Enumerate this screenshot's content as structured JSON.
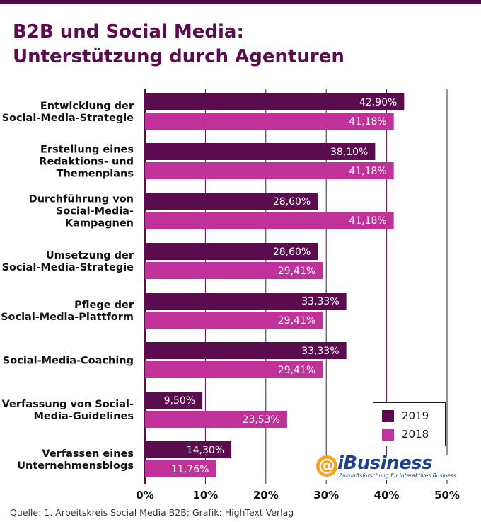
{
  "title_lines": [
    "B2B und Social Media:",
    "Unterstützung durch Agenturen"
  ],
  "source": "Quelle: 1. Arbeitskreis Social Media B2B; Grafik: HighText Verlag",
  "logo": {
    "word": "iBusiness",
    "tagline": "Zukunftsforschung für interaktives Business",
    "icon": "at-icon"
  },
  "colors": {
    "s2019": "#5a0c4e",
    "s2018": "#c0319a",
    "grid": "#5a0c4e",
    "title": "#5a0c4e",
    "topbar": "#4f0c45"
  },
  "chart_data": {
    "type": "bar",
    "orientation": "horizontal",
    "title": "B2B und Social Media: Unterstützung durch Agenturen",
    "categories": [
      [
        "Entwicklung der",
        "Social-Media-Strategie"
      ],
      [
        "Erstellung eines",
        "Redaktions- und",
        "Themenplans"
      ],
      [
        "Durchführung von",
        "Social-Media-",
        "Kampagnen"
      ],
      [
        "Umsetzung der",
        "Social-Media-Strategie"
      ],
      [
        "Pflege der",
        "Social-Media-Plattform"
      ],
      [
        "Social-Media-Coaching"
      ],
      [
        "Verfassung von Social-",
        "Media-Guidelines"
      ],
      [
        "Verfassen eines",
        "Unternehmensblogs"
      ]
    ],
    "series": [
      {
        "name": "2019",
        "values": [
          42.9,
          38.1,
          28.6,
          28.6,
          33.33,
          33.33,
          9.5,
          14.3
        ],
        "labels": [
          "42,90%",
          "38,10%",
          "28,60%",
          "28,60%",
          "33,33%",
          "33,33%",
          "9,50%",
          "14,30%"
        ]
      },
      {
        "name": "2018",
        "values": [
          41.18,
          41.18,
          41.18,
          29.41,
          29.41,
          29.41,
          23.53,
          11.76
        ],
        "labels": [
          "41,18%",
          "41,18%",
          "41,18%",
          "29,41%",
          "29,41%",
          "29,41%",
          "23,53%",
          "11,76%"
        ]
      }
    ],
    "xlim": [
      0,
      50
    ],
    "xticks": [
      0,
      10,
      20,
      30,
      40,
      50
    ],
    "xtick_labels": [
      "0%",
      "10%",
      "20%",
      "30%",
      "40%",
      "50%"
    ],
    "grid": true,
    "legend_position": "bottom-right"
  }
}
